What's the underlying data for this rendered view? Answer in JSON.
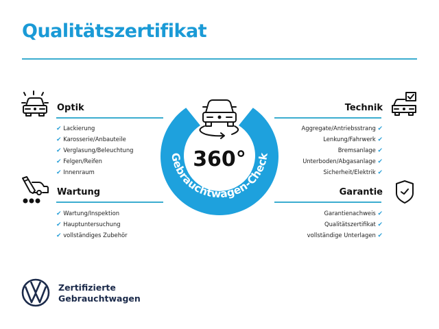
{
  "title": "Qualitätszertifikat",
  "center": {
    "number": "360°",
    "ring_text": "Gebrauchtwagen-Check"
  },
  "colors": {
    "accent": "#1a9ad6",
    "ring": "#1ea1dd",
    "brand_navy": "#1b2a4a"
  },
  "sections": {
    "optik": {
      "title": "Optik",
      "icon": "car-lights-icon",
      "items": [
        "Lackierung",
        "Karosserie/Anbauteile",
        "Verglasung/Beleuchtung",
        "Felgen/Reifen",
        "Innenraum"
      ]
    },
    "wartung": {
      "title": "Wartung",
      "icon": "maintenance-tools-icon",
      "items": [
        "Wartung/Inspektion",
        "Hauptuntersuchung",
        "vollständiges Zubehör"
      ]
    },
    "technik": {
      "title": "Technik",
      "icon": "car-checkbox-icon",
      "items": [
        "Aggregate/Antriebsstrang",
        "Lenkung/Fahrwerk",
        "Bremsanlage",
        "Unterboden/Abgasanlage",
        "Sicherheit/Elektrik"
      ]
    },
    "garantie": {
      "title": "Garantie",
      "icon": "shield-check-icon",
      "items": [
        "Garantienachweis",
        "Qualitätszertifikat",
        "vollständige Unterlagen"
      ]
    }
  },
  "check_mark": "✔",
  "brand": {
    "line1": "Zertifizierte",
    "line2": "Gebrauchtwagen",
    "logo": "vw-logo"
  }
}
